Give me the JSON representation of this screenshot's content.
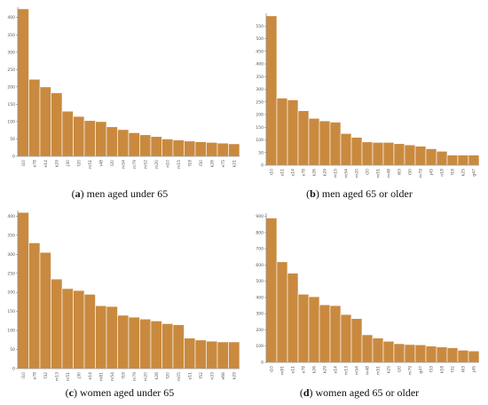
{
  "chart_data": [
    {
      "type": "bar",
      "panel": "a",
      "caption": "men aged under 65",
      "color": "#c98a3f",
      "categories": [
        "i10",
        "e78",
        "e14",
        "k29",
        "j30",
        "f20",
        "m51",
        "i48",
        "l20",
        "m54",
        "m79",
        "m52",
        "m20",
        "n10",
        "m15",
        "f18",
        "i50",
        "k26",
        "e75",
        "k21"
      ],
      "values": [
        425,
        222,
        200,
        183,
        130,
        115,
        103,
        100,
        85,
        77,
        68,
        62,
        57,
        50,
        47,
        44,
        42,
        40,
        38,
        36
      ],
      "ylim": [
        0,
        430
      ],
      "yticks": [
        0,
        50,
        100,
        150,
        200,
        250,
        300,
        350,
        400
      ]
    },
    {
      "type": "bar",
      "panel": "b",
      "caption": "men aged 65 or older",
      "color": "#c98a3f",
      "categories": [
        "i10",
        "e11",
        "e14",
        "e78",
        "k26",
        "k29",
        "m15",
        "m54",
        "m20",
        "i20",
        "m51",
        "m48",
        "i63",
        "i50",
        "m79",
        "j45",
        "n18",
        "f18",
        "k25",
        "g47"
      ],
      "values": [
        590,
        265,
        258,
        215,
        185,
        175,
        170,
        125,
        110,
        92,
        90,
        90,
        85,
        80,
        75,
        65,
        55,
        40,
        40,
        40
      ],
      "ylim": [
        0,
        600
      ],
      "yticks": [
        0,
        50,
        100,
        150,
        200,
        250,
        300,
        350,
        400,
        450,
        500,
        550
      ]
    },
    {
      "type": "bar",
      "panel": "c",
      "caption": "women aged under 65",
      "color": "#c98a3f",
      "categories": [
        "i10",
        "e78",
        "f32",
        "m13",
        "m51",
        "j30",
        "e14",
        "m81",
        "m54",
        "f18",
        "m79",
        "m20",
        "k26",
        "f20",
        "m05",
        "e11",
        "f52",
        "n33",
        "e66",
        "k29"
      ],
      "values": [
        410,
        330,
        305,
        235,
        210,
        205,
        195,
        165,
        163,
        140,
        135,
        130,
        125,
        118,
        115,
        80,
        75,
        72,
        70,
        70
      ],
      "ylim": [
        0,
        415
      ],
      "yticks": [
        0,
        50,
        100,
        150,
        200,
        250,
        300,
        350,
        400
      ]
    },
    {
      "type": "bar",
      "panel": "d",
      "caption": "women aged 65 or older",
      "color": "#c98a3f",
      "categories": [
        "i10",
        "m81",
        "e11",
        "e78",
        "k26",
        "k29",
        "e14",
        "m13",
        "m54",
        "m48",
        "m51",
        "k25",
        "i20",
        "m79",
        "g47",
        "f33",
        "k18",
        "f32",
        "i63",
        "j45"
      ],
      "values": [
        890,
        620,
        550,
        420,
        405,
        355,
        350,
        295,
        270,
        170,
        150,
        130,
        115,
        110,
        108,
        100,
        95,
        90,
        75,
        70
      ],
      "ylim": [
        0,
        920
      ],
      "yticks": [
        0,
        100,
        200,
        300,
        400,
        500,
        600,
        700,
        800,
        900
      ]
    }
  ]
}
